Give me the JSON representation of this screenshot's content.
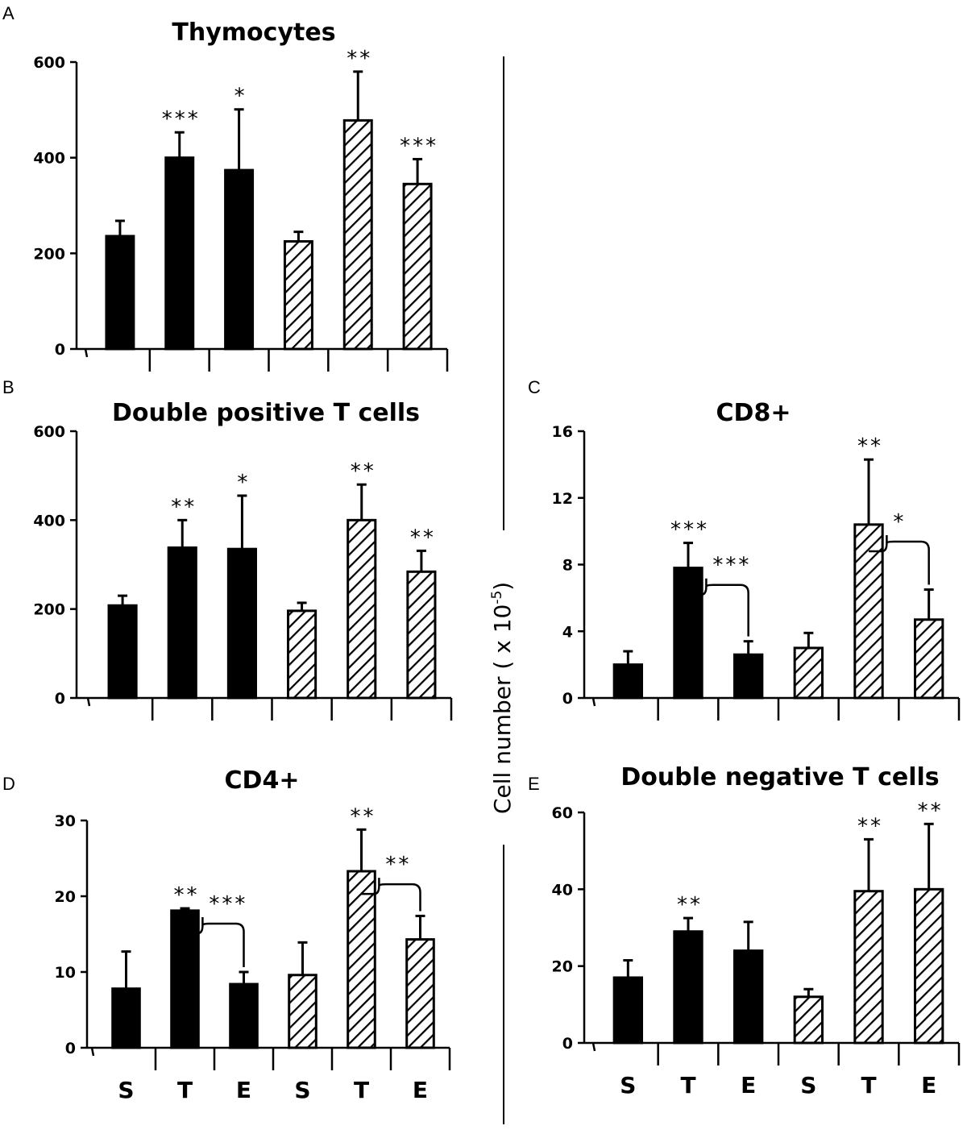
{
  "figure": {
    "ylabel_main": "Cell number ( x 10",
    "ylabel_exp": "-5",
    "ylabel_close": ")"
  },
  "chart_data": [
    {
      "panel": "A",
      "type": "bar",
      "title": "Thymocytes",
      "categories": [
        "S",
        "T",
        "E",
        "S",
        "T",
        "E"
      ],
      "show_category_labels": false,
      "fills": [
        "solid",
        "solid",
        "solid",
        "hatched",
        "hatched",
        "hatched"
      ],
      "values": [
        236,
        400,
        374,
        225,
        478,
        345
      ],
      "errors": [
        32,
        53,
        127,
        20,
        102,
        52
      ],
      "significance": [
        "",
        "***",
        "*",
        "",
        "**",
        "***"
      ],
      "brackets": [],
      "ylim": [
        0,
        600
      ],
      "yticks": [
        0,
        200,
        400,
        600
      ],
      "xlabel": "",
      "ylabel": ""
    },
    {
      "panel": "B",
      "type": "bar",
      "title": "Double positive T cells",
      "categories": [
        "S",
        "T",
        "E",
        "S",
        "T",
        "E"
      ],
      "show_category_labels": false,
      "fills": [
        "solid",
        "solid",
        "solid",
        "hatched",
        "hatched",
        "hatched"
      ],
      "values": [
        208,
        338,
        335,
        196,
        400,
        284
      ],
      "errors": [
        22,
        62,
        120,
        18,
        80,
        47
      ],
      "significance": [
        "",
        "**",
        "*",
        "",
        "**",
        "**"
      ],
      "brackets": [],
      "ylim": [
        0,
        600
      ],
      "yticks": [
        0,
        200,
        400,
        600
      ],
      "xlabel": "",
      "ylabel": ""
    },
    {
      "panel": "C",
      "type": "bar",
      "title": "CD8+",
      "categories": [
        "S",
        "T",
        "E",
        "S",
        "T",
        "E"
      ],
      "show_category_labels": false,
      "fills": [
        "solid",
        "solid",
        "solid",
        "hatched",
        "hatched",
        "hatched"
      ],
      "values": [
        2.0,
        7.8,
        2.6,
        3.0,
        10.4,
        4.7
      ],
      "errors": [
        0.8,
        1.5,
        0.8,
        0.9,
        3.9,
        1.8
      ],
      "significance": [
        "",
        "***",
        "",
        "",
        "**",
        ""
      ],
      "brackets": [
        {
          "from": 1,
          "to": 2,
          "label": "***"
        },
        {
          "from": 4,
          "to": 5,
          "label": "*"
        }
      ],
      "ylim": [
        0,
        16
      ],
      "yticks": [
        0,
        4,
        8,
        12,
        16
      ],
      "xlabel": "",
      "ylabel": ""
    },
    {
      "panel": "D",
      "type": "bar",
      "title": "CD4+",
      "categories": [
        "S",
        "T",
        "E",
        "S",
        "T",
        "E"
      ],
      "show_category_labels": true,
      "fills": [
        "solid",
        "solid",
        "solid",
        "hatched",
        "hatched",
        "hatched"
      ],
      "values": [
        7.8,
        18.1,
        8.4,
        9.6,
        23.3,
        14.3
      ],
      "errors": [
        4.9,
        0.3,
        1.6,
        4.3,
        5.5,
        3.1
      ],
      "significance": [
        "",
        "**",
        "",
        "",
        "**",
        ""
      ],
      "brackets": [
        {
          "from": 1,
          "to": 2,
          "label": "***"
        },
        {
          "from": 4,
          "to": 5,
          "label": "**"
        }
      ],
      "ylim": [
        0,
        30
      ],
      "yticks": [
        0,
        10,
        20,
        30
      ],
      "xlabel": "",
      "ylabel": ""
    },
    {
      "panel": "E",
      "type": "bar",
      "title": "Double negative T cells",
      "categories": [
        "S",
        "T",
        "E",
        "S",
        "T",
        "E"
      ],
      "show_category_labels": true,
      "fills": [
        "solid",
        "solid",
        "solid",
        "hatched",
        "hatched",
        "hatched"
      ],
      "values": [
        17,
        29,
        24,
        12,
        39.5,
        40
      ],
      "errors": [
        4.5,
        3.5,
        7.5,
        2,
        13.5,
        17
      ],
      "significance": [
        "",
        "**",
        "",
        "",
        "**",
        "**"
      ],
      "brackets": [],
      "ylim": [
        0,
        60
      ],
      "yticks": [
        0,
        20,
        40,
        60
      ],
      "xlabel": "",
      "ylabel": ""
    }
  ]
}
